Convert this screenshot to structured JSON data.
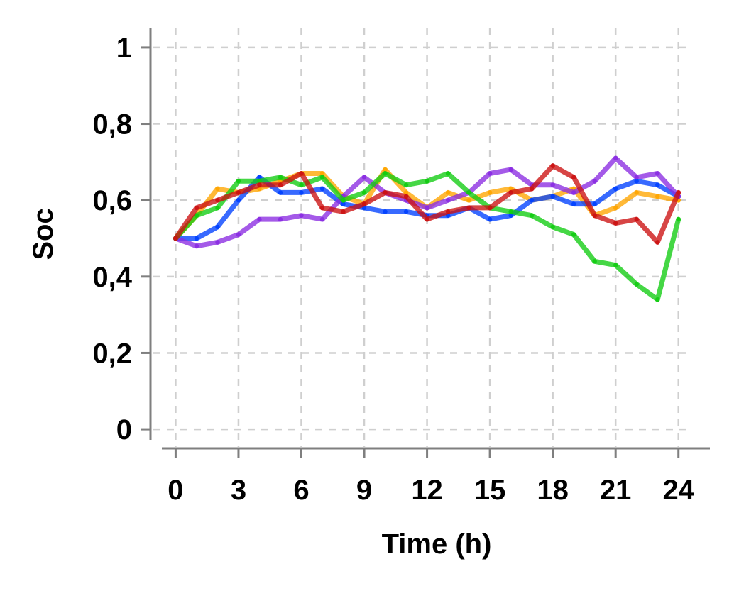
{
  "chart_data": {
    "type": "line",
    "title": "",
    "xlabel": "Time (h)",
    "ylabel": "Soc",
    "xlim": [
      -1.2,
      25.5
    ],
    "ylim": [
      -0.05,
      1.05
    ],
    "grid": true,
    "x_ticks": [
      0,
      3,
      6,
      9,
      12,
      15,
      18,
      21,
      24
    ],
    "x_tick_labels": [
      "0",
      "3",
      "6",
      "9",
      "12",
      "15",
      "18",
      "21",
      "24"
    ],
    "y_ticks": [
      0,
      0.2,
      0.4,
      0.6,
      0.8,
      1
    ],
    "y_tick_labels": [
      "0",
      "0,2",
      "0,4",
      "0,6",
      "0,8",
      "1"
    ],
    "x": [
      0,
      1,
      2,
      3,
      4,
      5,
      6,
      7,
      8,
      9,
      10,
      11,
      12,
      13,
      14,
      15,
      16,
      17,
      18,
      19,
      20,
      21,
      22,
      23,
      24
    ],
    "series": [
      {
        "color": "#ffa500",
        "values": [
          0.5,
          0.56,
          0.63,
          0.62,
          0.63,
          0.65,
          0.67,
          0.67,
          0.61,
          0.59,
          0.68,
          0.62,
          0.58,
          0.62,
          0.6,
          0.62,
          0.63,
          0.6,
          0.61,
          0.63,
          0.56,
          0.58,
          0.62,
          0.61,
          0.6
        ]
      },
      {
        "color": "#0040ff",
        "values": [
          0.5,
          0.5,
          0.53,
          0.6,
          0.66,
          0.62,
          0.62,
          0.63,
          0.59,
          0.58,
          0.57,
          0.57,
          0.56,
          0.56,
          0.58,
          0.55,
          0.56,
          0.6,
          0.61,
          0.59,
          0.59,
          0.63,
          0.65,
          0.64,
          0.61
        ]
      },
      {
        "color": "#8a2be2",
        "values": [
          0.5,
          0.48,
          0.49,
          0.51,
          0.55,
          0.55,
          0.56,
          0.55,
          0.61,
          0.66,
          0.62,
          0.6,
          0.58,
          0.6,
          0.62,
          0.67,
          0.68,
          0.64,
          0.64,
          0.62,
          0.65,
          0.71,
          0.66,
          0.67,
          0.61
        ]
      },
      {
        "color": "#11cc11",
        "values": [
          0.5,
          0.56,
          0.58,
          0.65,
          0.65,
          0.66,
          0.64,
          0.66,
          0.6,
          0.62,
          0.67,
          0.64,
          0.65,
          0.67,
          0.62,
          0.58,
          0.57,
          0.56,
          0.53,
          0.51,
          0.44,
          0.43,
          0.38,
          0.34,
          0.55
        ]
      },
      {
        "color": "#cc1111",
        "values": [
          0.5,
          0.58,
          0.6,
          0.62,
          0.64,
          0.64,
          0.67,
          0.58,
          0.57,
          0.59,
          0.62,
          0.61,
          0.55,
          0.57,
          0.58,
          0.58,
          0.62,
          0.63,
          0.69,
          0.66,
          0.56,
          0.54,
          0.55,
          0.49,
          0.62
        ]
      }
    ]
  }
}
